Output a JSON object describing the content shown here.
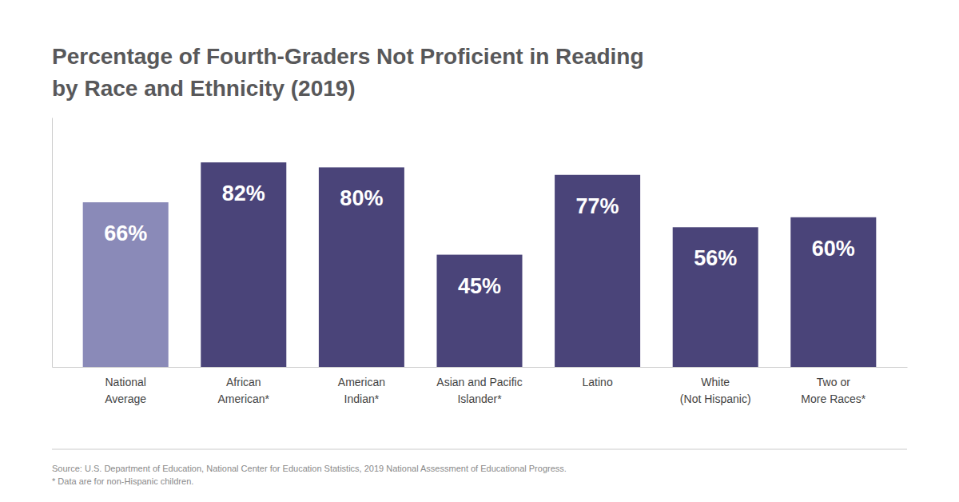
{
  "chart_data": {
    "type": "bar",
    "title": "Percentage of Fourth-Graders Not Proficient in Reading\nby Race and Ethnicity (2019)",
    "categories": [
      "National\nAverage",
      "African\nAmerican*",
      "American\nIndian*",
      "Asian and Pacific\nIslander*",
      "Latino",
      "White\n(Not Hispanic)",
      "Two or\nMore Races*"
    ],
    "values": [
      66,
      82,
      80,
      45,
      77,
      56,
      60
    ],
    "value_labels": [
      "66%",
      "82%",
      "80%",
      "45%",
      "77%",
      "56%",
      "60%"
    ],
    "colors": [
      "#8a8ab8",
      "#4a4479",
      "#4a4479",
      "#4a4479",
      "#4a4479",
      "#4a4479",
      "#4a4479"
    ],
    "ylim": [
      0,
      100
    ],
    "yticks": [],
    "grid": false,
    "data_labels": true,
    "tick_labels": "x",
    "annotations": [
      "Source: U.S. Department of Education, National Center for Education Statistics, 2019 National Assessment of Educational Progress.",
      "* Data are for non-Hispanic children."
    ]
  }
}
